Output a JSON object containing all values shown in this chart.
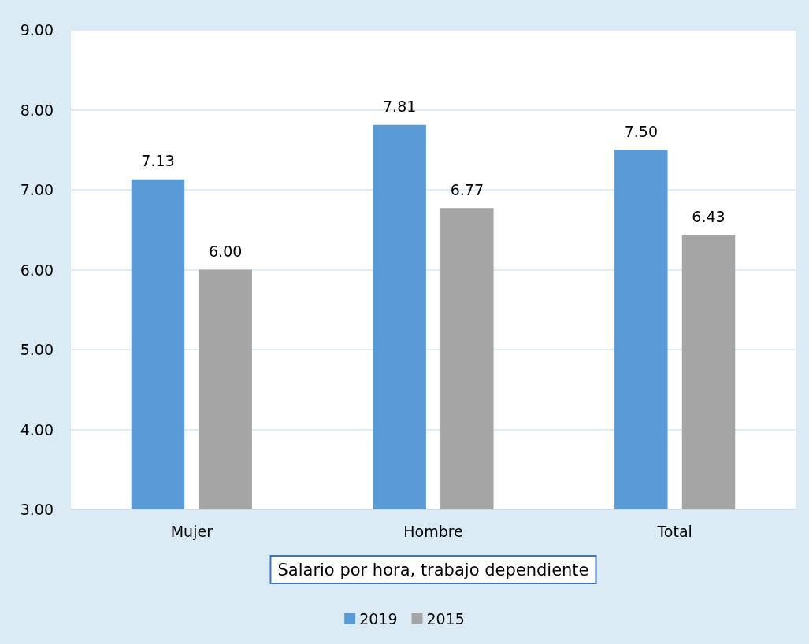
{
  "chart_data": {
    "type": "bar",
    "xlabel": "Salario por hora, trabajo dependiente",
    "categories": [
      "Mujer",
      "Hombre",
      "Total"
    ],
    "series": [
      {
        "name": "2019",
        "color": "#5b9bd5",
        "values": [
          7.13,
          7.81,
          7.5
        ],
        "value_labels": [
          "7.13",
          "7.81",
          "7.50"
        ]
      },
      {
        "name": "2015",
        "color": "#a5a5a5",
        "values": [
          6.0,
          6.77,
          6.43
        ],
        "value_labels": [
          "6.00",
          "6.77",
          "6.43"
        ]
      }
    ],
    "ylim": [
      3,
      9
    ],
    "yticks": [
      {
        "value": 3,
        "label": "3.00"
      },
      {
        "value": 4,
        "label": "4.00"
      },
      {
        "value": 5,
        "label": "5.00"
      },
      {
        "value": 6,
        "label": "6.00"
      },
      {
        "value": 7,
        "label": "7.00"
      },
      {
        "value": 8,
        "label": "8.00"
      },
      {
        "value": 9,
        "label": "9.00"
      }
    ],
    "grid": "y",
    "legend": "bottom"
  }
}
